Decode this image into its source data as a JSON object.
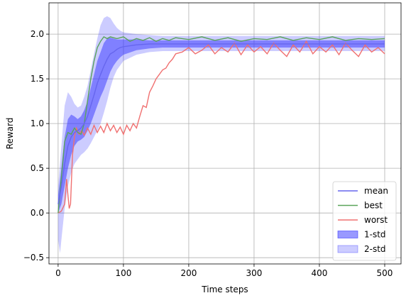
{
  "chart_data": {
    "type": "line",
    "title": "",
    "xlabel": "Time steps",
    "ylabel": "Reward",
    "xlim": [
      -14,
      525
    ],
    "ylim": [
      -0.57,
      2.35
    ],
    "xticks": [
      0,
      100,
      200,
      300,
      400,
      500
    ],
    "yticks": [
      -0.5,
      0.0,
      0.5,
      1.0,
      1.5,
      2.0
    ],
    "ytick_labels": [
      "−0.5",
      "0.0",
      "0.5",
      "1.0",
      "1.5",
      "2.0"
    ],
    "grid": true,
    "legend_position": "lower right",
    "colors": {
      "mean": "#6666ee",
      "best": "#5aa45a",
      "worst": "#f07070",
      "std1": "#3333ff",
      "std2": "#3333ff"
    },
    "legend": [
      {
        "label": "mean",
        "kind": "line",
        "color": "#6666ee"
      },
      {
        "label": "best",
        "kind": "line",
        "color": "#5aa45a"
      },
      {
        "label": "worst",
        "kind": "line",
        "color": "#f07070"
      },
      {
        "label": "1-std",
        "kind": "patch",
        "color": "#3333ff",
        "opacity": 0.5
      },
      {
        "label": "2-std",
        "kind": "patch",
        "color": "#3333ff",
        "opacity": 0.25
      }
    ],
    "series": [
      {
        "name": "mean",
        "points": [
          [
            0,
            0.1
          ],
          [
            5,
            0.3
          ],
          [
            10,
            0.55
          ],
          [
            15,
            0.75
          ],
          [
            20,
            0.85
          ],
          [
            25,
            0.9
          ],
          [
            30,
            0.92
          ],
          [
            35,
            0.95
          ],
          [
            40,
            1.0
          ],
          [
            45,
            1.08
          ],
          [
            50,
            1.2
          ],
          [
            55,
            1.32
          ],
          [
            60,
            1.45
          ],
          [
            65,
            1.55
          ],
          [
            70,
            1.64
          ],
          [
            75,
            1.72
          ],
          [
            80,
            1.78
          ],
          [
            85,
            1.8
          ],
          [
            90,
            1.83
          ],
          [
            95,
            1.85
          ],
          [
            100,
            1.86
          ],
          [
            120,
            1.88
          ],
          [
            140,
            1.89
          ],
          [
            160,
            1.89
          ],
          [
            200,
            1.89
          ],
          [
            300,
            1.89
          ],
          [
            400,
            1.89
          ],
          [
            500,
            1.89
          ]
        ]
      },
      {
        "name": "best",
        "points": [
          [
            0,
            0.0
          ],
          [
            5,
            0.4
          ],
          [
            10,
            0.8
          ],
          [
            15,
            0.9
          ],
          [
            20,
            0.88
          ],
          [
            25,
            0.95
          ],
          [
            30,
            0.9
          ],
          [
            35,
            0.88
          ],
          [
            40,
            1.0
          ],
          [
            45,
            1.25
          ],
          [
            50,
            1.5
          ],
          [
            55,
            1.7
          ],
          [
            60,
            1.85
          ],
          [
            65,
            1.92
          ],
          [
            70,
            1.97
          ],
          [
            75,
            1.95
          ],
          [
            80,
            1.97
          ],
          [
            85,
            1.96
          ],
          [
            90,
            1.95
          ],
          [
            95,
            1.96
          ],
          [
            100,
            1.97
          ],
          [
            110,
            1.92
          ],
          [
            120,
            1.95
          ],
          [
            130,
            1.93
          ],
          [
            140,
            1.96
          ],
          [
            150,
            1.92
          ],
          [
            160,
            1.95
          ],
          [
            170,
            1.93
          ],
          [
            180,
            1.96
          ],
          [
            200,
            1.94
          ],
          [
            220,
            1.97
          ],
          [
            240,
            1.93
          ],
          [
            260,
            1.96
          ],
          [
            280,
            1.92
          ],
          [
            300,
            1.95
          ],
          [
            320,
            1.94
          ],
          [
            340,
            1.97
          ],
          [
            360,
            1.93
          ],
          [
            380,
            1.96
          ],
          [
            400,
            1.94
          ],
          [
            420,
            1.97
          ],
          [
            440,
            1.93
          ],
          [
            460,
            1.95
          ],
          [
            480,
            1.94
          ],
          [
            500,
            1.95
          ]
        ]
      },
      {
        "name": "worst",
        "points": [
          [
            0,
            0.0
          ],
          [
            5,
            0.02
          ],
          [
            10,
            0.1
          ],
          [
            13,
            0.38
          ],
          [
            15,
            0.2
          ],
          [
            17,
            0.05
          ],
          [
            19,
            0.1
          ],
          [
            22,
            0.65
          ],
          [
            25,
            0.85
          ],
          [
            28,
            0.95
          ],
          [
            32,
            0.88
          ],
          [
            36,
            0.92
          ],
          [
            40,
            0.87
          ],
          [
            45,
            0.95
          ],
          [
            50,
            0.88
          ],
          [
            55,
            0.98
          ],
          [
            60,
            0.9
          ],
          [
            65,
            0.97
          ],
          [
            70,
            0.9
          ],
          [
            75,
            1.0
          ],
          [
            80,
            0.92
          ],
          [
            85,
            0.98
          ],
          [
            90,
            0.9
          ],
          [
            95,
            0.96
          ],
          [
            100,
            0.88
          ],
          [
            105,
            0.98
          ],
          [
            110,
            0.92
          ],
          [
            115,
            1.0
          ],
          [
            120,
            0.95
          ],
          [
            125,
            1.08
          ],
          [
            130,
            1.2
          ],
          [
            135,
            1.18
          ],
          [
            140,
            1.35
          ],
          [
            145,
            1.42
          ],
          [
            150,
            1.5
          ],
          [
            155,
            1.55
          ],
          [
            160,
            1.6
          ],
          [
            165,
            1.62
          ],
          [
            170,
            1.68
          ],
          [
            175,
            1.72
          ],
          [
            180,
            1.78
          ],
          [
            190,
            1.8
          ],
          [
            200,
            1.85
          ],
          [
            210,
            1.78
          ],
          [
            220,
            1.82
          ],
          [
            230,
            1.88
          ],
          [
            240,
            1.78
          ],
          [
            250,
            1.85
          ],
          [
            260,
            1.8
          ],
          [
            270,
            1.9
          ],
          [
            280,
            1.77
          ],
          [
            290,
            1.88
          ],
          [
            300,
            1.8
          ],
          [
            310,
            1.86
          ],
          [
            320,
            1.78
          ],
          [
            330,
            1.9
          ],
          [
            340,
            1.82
          ],
          [
            350,
            1.75
          ],
          [
            360,
            1.88
          ],
          [
            370,
            1.8
          ],
          [
            380,
            1.92
          ],
          [
            390,
            1.78
          ],
          [
            400,
            1.86
          ],
          [
            410,
            1.8
          ],
          [
            420,
            1.88
          ],
          [
            430,
            1.77
          ],
          [
            440,
            1.9
          ],
          [
            450,
            1.82
          ],
          [
            460,
            1.75
          ],
          [
            470,
            1.88
          ],
          [
            480,
            1.8
          ],
          [
            490,
            1.85
          ],
          [
            500,
            1.78
          ]
        ]
      },
      {
        "name": "1-std",
        "upper": [
          [
            0,
            0.2
          ],
          [
            5,
            0.5
          ],
          [
            10,
            0.85
          ],
          [
            15,
            1.05
          ],
          [
            20,
            1.1
          ],
          [
            25,
            1.08
          ],
          [
            30,
            1.05
          ],
          [
            35,
            1.08
          ],
          [
            40,
            1.15
          ],
          [
            45,
            1.25
          ],
          [
            50,
            1.4
          ],
          [
            55,
            1.55
          ],
          [
            60,
            1.7
          ],
          [
            65,
            1.8
          ],
          [
            70,
            1.9
          ],
          [
            75,
            1.95
          ],
          [
            80,
            1.96
          ],
          [
            85,
            1.95
          ],
          [
            90,
            1.94
          ],
          [
            95,
            1.94
          ],
          [
            100,
            1.94
          ],
          [
            120,
            1.94
          ],
          [
            140,
            1.93
          ],
          [
            160,
            1.93
          ],
          [
            200,
            1.93
          ],
          [
            300,
            1.93
          ],
          [
            400,
            1.93
          ],
          [
            500,
            1.93
          ]
        ],
        "lower": [
          [
            0,
            0.0
          ],
          [
            5,
            0.1
          ],
          [
            10,
            0.3
          ],
          [
            15,
            0.5
          ],
          [
            20,
            0.65
          ],
          [
            25,
            0.75
          ],
          [
            30,
            0.8
          ],
          [
            35,
            0.82
          ],
          [
            40,
            0.85
          ],
          [
            45,
            0.92
          ],
          [
            50,
            1.0
          ],
          [
            55,
            1.1
          ],
          [
            60,
            1.2
          ],
          [
            65,
            1.3
          ],
          [
            70,
            1.38
          ],
          [
            75,
            1.48
          ],
          [
            80,
            1.58
          ],
          [
            85,
            1.65
          ],
          [
            90,
            1.7
          ],
          [
            95,
            1.74
          ],
          [
            100,
            1.77
          ],
          [
            120,
            1.82
          ],
          [
            140,
            1.84
          ],
          [
            160,
            1.85
          ],
          [
            200,
            1.85
          ],
          [
            300,
            1.85
          ],
          [
            400,
            1.85
          ],
          [
            500,
            1.85
          ]
        ]
      },
      {
        "name": "2-std",
        "upper": [
          [
            0,
            0.3
          ],
          [
            5,
            0.75
          ],
          [
            10,
            1.2
          ],
          [
            15,
            1.35
          ],
          [
            20,
            1.3
          ],
          [
            25,
            1.22
          ],
          [
            30,
            1.18
          ],
          [
            35,
            1.2
          ],
          [
            40,
            1.3
          ],
          [
            45,
            1.42
          ],
          [
            50,
            1.6
          ],
          [
            55,
            1.78
          ],
          [
            60,
            1.95
          ],
          [
            65,
            2.1
          ],
          [
            70,
            2.18
          ],
          [
            75,
            2.2
          ],
          [
            80,
            2.18
          ],
          [
            85,
            2.12
          ],
          [
            90,
            2.07
          ],
          [
            95,
            2.04
          ],
          [
            100,
            2.02
          ],
          [
            120,
            2.0
          ],
          [
            140,
            1.99
          ],
          [
            160,
            1.98
          ],
          [
            200,
            1.98
          ],
          [
            300,
            1.98
          ],
          [
            400,
            1.98
          ],
          [
            500,
            1.98
          ]
        ],
        "lower": [
          [
            0,
            -0.3
          ],
          [
            3,
            -0.45
          ],
          [
            5,
            -0.3
          ],
          [
            10,
            0.05
          ],
          [
            15,
            0.3
          ],
          [
            20,
            0.45
          ],
          [
            25,
            0.55
          ],
          [
            30,
            0.6
          ],
          [
            35,
            0.65
          ],
          [
            40,
            0.68
          ],
          [
            45,
            0.72
          ],
          [
            50,
            0.78
          ],
          [
            55,
            0.85
          ],
          [
            60,
            0.92
          ],
          [
            65,
            1.0
          ],
          [
            70,
            1.12
          ],
          [
            75,
            1.25
          ],
          [
            80,
            1.4
          ],
          [
            85,
            1.52
          ],
          [
            90,
            1.6
          ],
          [
            95,
            1.65
          ],
          [
            100,
            1.7
          ],
          [
            120,
            1.77
          ],
          [
            140,
            1.8
          ],
          [
            160,
            1.81
          ],
          [
            200,
            1.81
          ],
          [
            300,
            1.81
          ],
          [
            400,
            1.81
          ],
          [
            500,
            1.81
          ]
        ]
      }
    ]
  }
}
